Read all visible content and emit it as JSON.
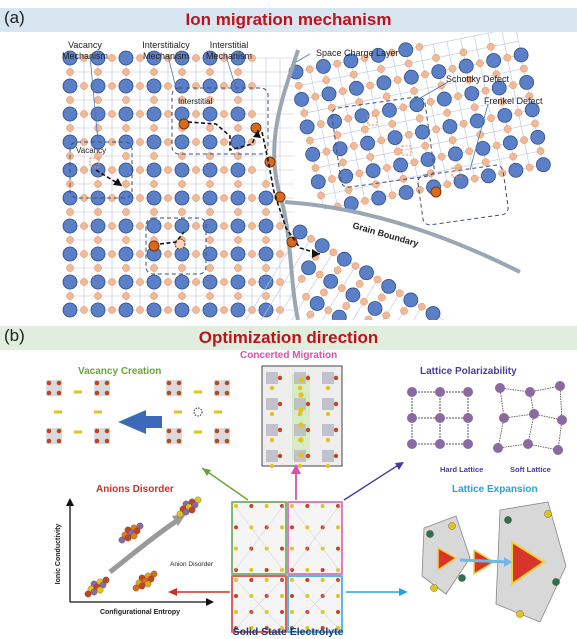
{
  "panel_a": {
    "letter": "(a)",
    "title": "Ion migration mechanism",
    "labels": {
      "vacancy_mechanism": "Vacancy\nMechanism",
      "interstitialcy_mechanism": "Interstitialcy\nMechanism",
      "interstitial_mechanism": "Interstitial\nMechanism",
      "space_charge_layer": "Space Charge Layer",
      "schottky_defect": "Schottky Defect",
      "frenkel_defect": "Frenkel Defect",
      "interstitial": "Interstitial",
      "vacancy": "Vacancy",
      "grain_boundary": "Grain Boundary"
    }
  },
  "panel_b": {
    "letter": "(b)",
    "title": "Optimization direction",
    "vacancy_creation": "Vacancy Creation",
    "concerted_migration": "Concerted Migration",
    "lattice_polarizability": "Lattice Polarizability",
    "hard_lattice": "Hard Lattice",
    "soft_lattice": "Soft Lattice",
    "anions_disorder": "Anions Disorder",
    "lattice_expansion": "Lattice Expansion",
    "center": "Solid State Electrolyte",
    "axis_y": "Ionic Conductivity",
    "axis_x": "Configurational Entropy",
    "anion_disorder_tag": "Anion\nDisorder"
  },
  "colors": {
    "title_red": "#c0111b",
    "banner_a": "#d8e6f2",
    "banner_b": "#dfeedd",
    "vacancy_green": "#6aa636",
    "concerted_pink": "#d94fb8",
    "polar_purple": "#4b3a9c",
    "anions_red": "#d03028",
    "expansion_blue": "#2aa0d8",
    "blue_atom": "#5b80c8",
    "peach_atom": "#f3b894"
  }
}
